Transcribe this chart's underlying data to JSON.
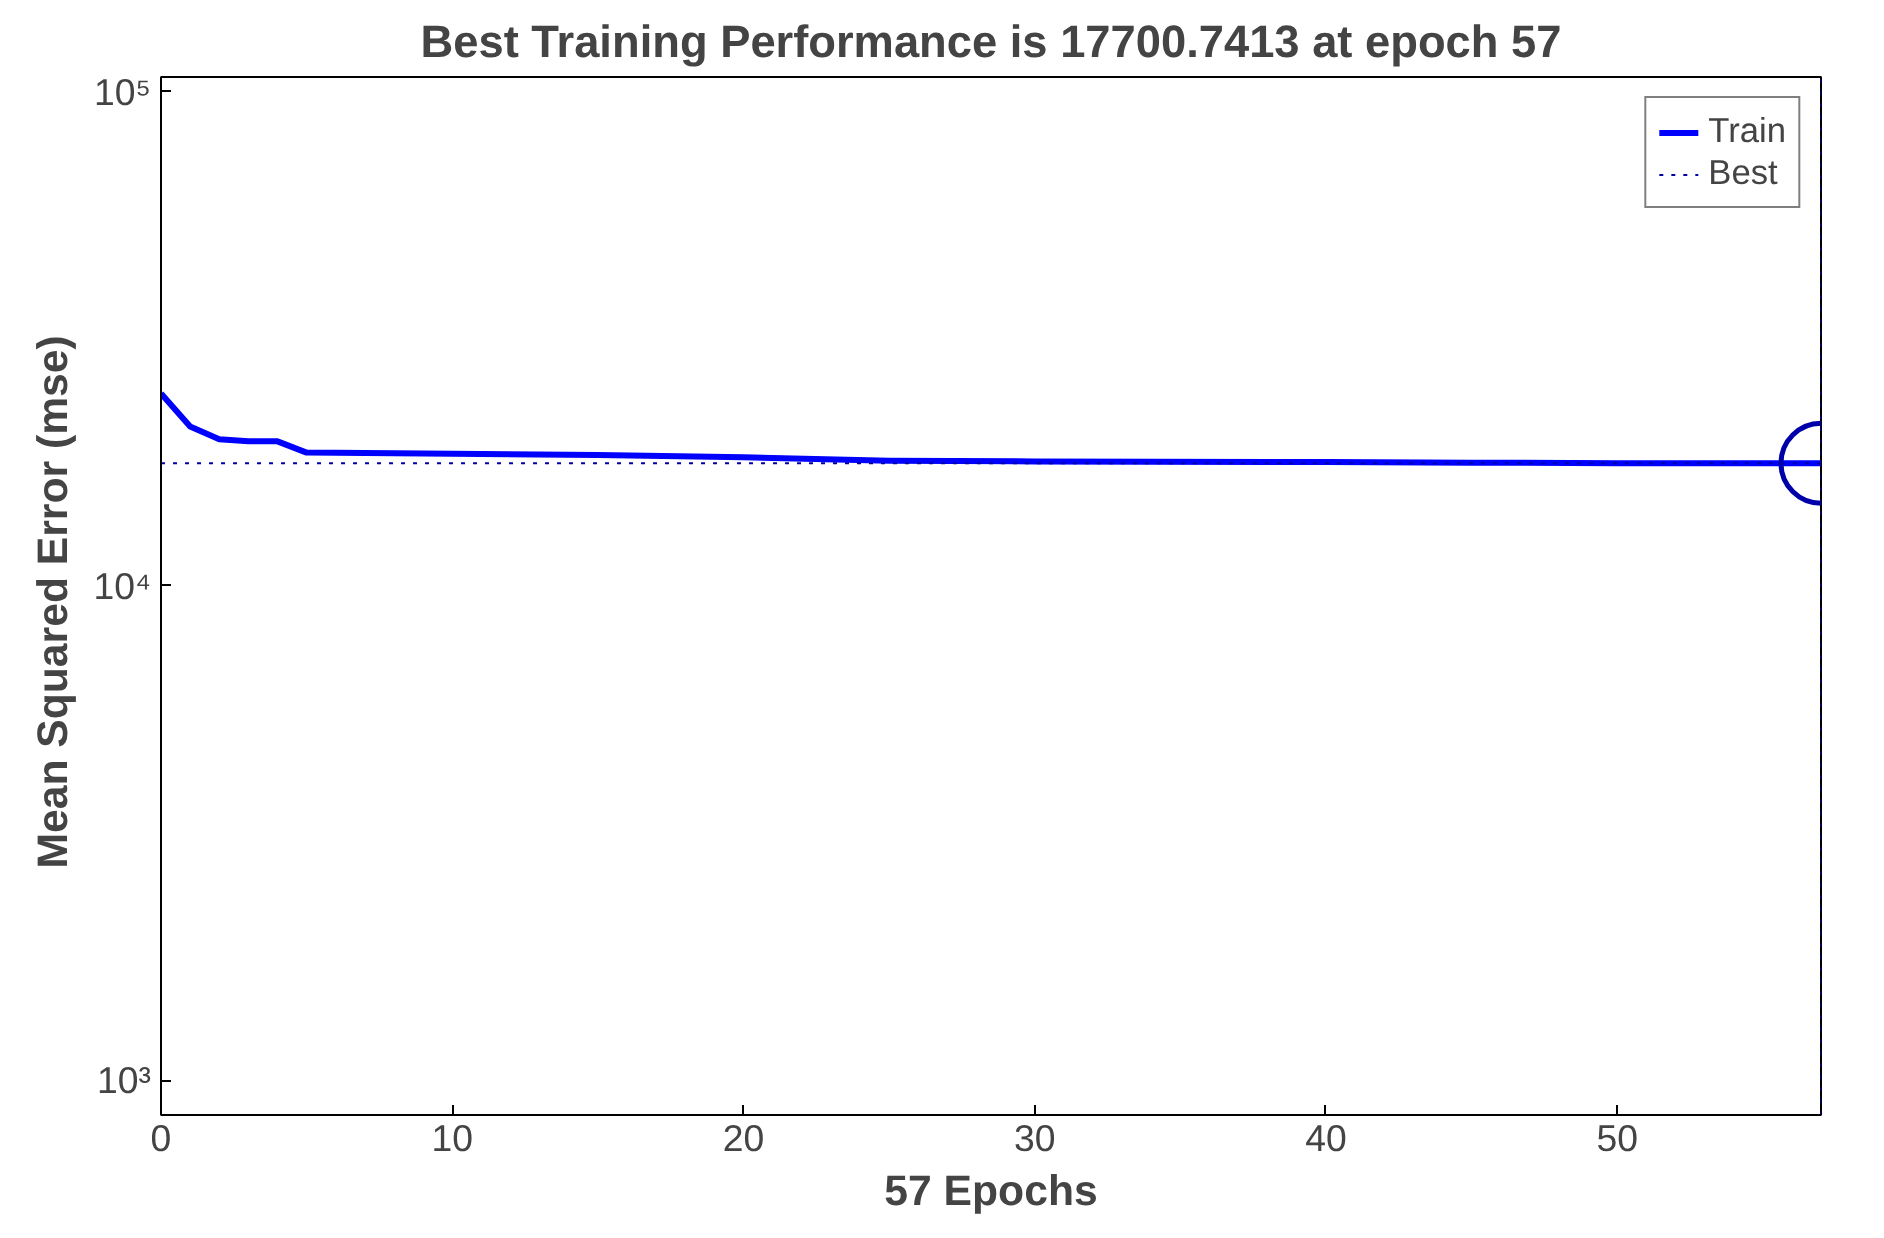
{
  "chart_data": {
    "type": "line",
    "title": "Best Training Performance is 17700.7413 at epoch 57",
    "xlabel": "57 Epochs",
    "ylabel": "Mean Squared Error  (mse)",
    "series": [
      {
        "name": "Train",
        "color": "#0000ff",
        "x": [
          0,
          1,
          2,
          3,
          4,
          5,
          10,
          15,
          20,
          25,
          30,
          40,
          45,
          50,
          57
        ],
        "values": [
          24500,
          21000,
          19800,
          19600,
          19600,
          18600,
          18500,
          18400,
          18200,
          17900,
          17850,
          17800,
          17750,
          17700,
          17700.7413
        ]
      },
      {
        "type": "scatter",
        "color": "#0000aa",
        "x": [
          57
        ],
        "values": [
          17700.7413
        ],
        "marker": "circle"
      }
    ],
    "ref_lines": [
      {
        "axis": "y",
        "value": 17700.7413,
        "label": "Best",
        "color": "#0000aa",
        "line_style": "dotted"
      },
      {
        "axis": "x",
        "value": 57,
        "color": "#0000aa",
        "line_style": "dotted"
      }
    ],
    "xlim": [
      0,
      57
    ],
    "ylim": [
      850,
      107000
    ],
    "xticks": [
      0,
      10,
      20,
      30,
      40,
      50
    ],
    "yticks": [
      {
        "value": 1000,
        "label": "10³"
      },
      {
        "value": 10000,
        "label": "10⁴"
      },
      {
        "value": 100000,
        "label": "10⁵"
      }
    ],
    "log": "y",
    "grid": false,
    "legend": "top right",
    "line_style": "solid"
  }
}
